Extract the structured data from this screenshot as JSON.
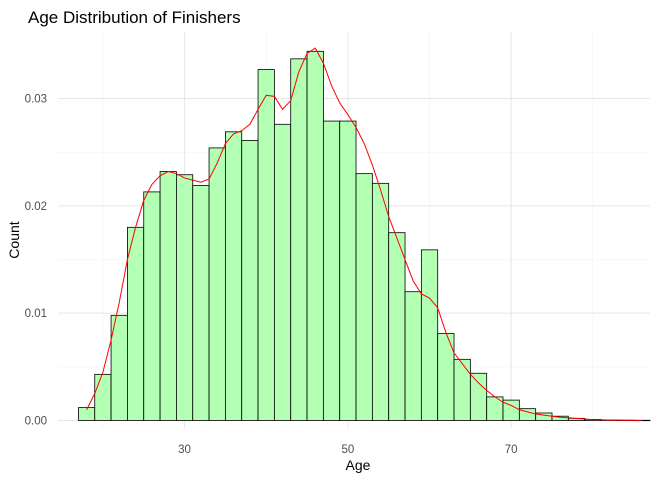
{
  "chart_data": {
    "type": "bar",
    "subtype": "histogram-with-density",
    "title": "Age Distribution of Finishers",
    "xlabel": "Age",
    "ylabel": "Count",
    "xlim": [
      14.5,
      87
    ],
    "ylim": [
      -0.0007,
      0.0362
    ],
    "x_ticks": [
      30,
      50,
      70
    ],
    "x_minor_ticks": [
      20,
      40,
      60,
      80
    ],
    "y_ticks": [
      0.0,
      0.01,
      0.02,
      0.03
    ],
    "y_tick_labels": [
      "0.00",
      "0.01",
      "0.02",
      "0.03"
    ],
    "grid": true,
    "bar_fill": "#b3ffb3",
    "bar_stroke": "#000000",
    "density_color": "#ff0000",
    "bins": [
      {
        "x0": 17,
        "x1": 19,
        "value": 0.0012
      },
      {
        "x0": 19,
        "x1": 21,
        "value": 0.0043
      },
      {
        "x0": 21,
        "x1": 23,
        "value": 0.0098
      },
      {
        "x0": 23,
        "x1": 25,
        "value": 0.018
      },
      {
        "x0": 25,
        "x1": 27,
        "value": 0.0213
      },
      {
        "x0": 27,
        "x1": 29,
        "value": 0.0232
      },
      {
        "x0": 29,
        "x1": 31,
        "value": 0.0229
      },
      {
        "x0": 31,
        "x1": 33,
        "value": 0.0219
      },
      {
        "x0": 33,
        "x1": 35,
        "value": 0.0254
      },
      {
        "x0": 35,
        "x1": 37,
        "value": 0.0269
      },
      {
        "x0": 37,
        "x1": 39,
        "value": 0.0261
      },
      {
        "x0": 39,
        "x1": 41,
        "value": 0.0327
      },
      {
        "x0": 41,
        "x1": 43,
        "value": 0.0276
      },
      {
        "x0": 43,
        "x1": 45,
        "value": 0.0337
      },
      {
        "x0": 45,
        "x1": 47,
        "value": 0.0344
      },
      {
        "x0": 47,
        "x1": 49,
        "value": 0.0279
      },
      {
        "x0": 49,
        "x1": 51,
        "value": 0.0279
      },
      {
        "x0": 51,
        "x1": 53,
        "value": 0.023
      },
      {
        "x0": 53,
        "x1": 55,
        "value": 0.0221
      },
      {
        "x0": 55,
        "x1": 57,
        "value": 0.0175
      },
      {
        "x0": 57,
        "x1": 59,
        "value": 0.012
      },
      {
        "x0": 59,
        "x1": 61,
        "value": 0.0159
      },
      {
        "x0": 61,
        "x1": 63,
        "value": 0.0081
      },
      {
        "x0": 63,
        "x1": 65,
        "value": 0.0057
      },
      {
        "x0": 65,
        "x1": 67,
        "value": 0.0044
      },
      {
        "x0": 67,
        "x1": 69,
        "value": 0.0022
      },
      {
        "x0": 69,
        "x1": 71,
        "value": 0.0019
      },
      {
        "x0": 71,
        "x1": 73,
        "value": 0.0011
      },
      {
        "x0": 73,
        "x1": 75,
        "value": 0.0007
      },
      {
        "x0": 75,
        "x1": 77,
        "value": 0.0004
      },
      {
        "x0": 77,
        "x1": 79,
        "value": 0.0002
      },
      {
        "x0": 79,
        "x1": 81,
        "value": 0.0001
      },
      {
        "x0": 81,
        "x1": 83,
        "value": 5e-05
      },
      {
        "x0": 83,
        "x1": 85,
        "value": 3e-05
      },
      {
        "x0": 85,
        "x1": 87,
        "value": 2e-05
      }
    ],
    "density": {
      "x": [
        18,
        19,
        20,
        21,
        22,
        23,
        24,
        25,
        26,
        27,
        28,
        29,
        30,
        31,
        32,
        33,
        34,
        35,
        36,
        37,
        38,
        39,
        40,
        41,
        42,
        43,
        44,
        45,
        46,
        47,
        48,
        49,
        50,
        51,
        52,
        53,
        54,
        55,
        56,
        57,
        58,
        59,
        60,
        61,
        62,
        63,
        64,
        65,
        66,
        67,
        68,
        69,
        70,
        71,
        72,
        73,
        74,
        75,
        76,
        78,
        80,
        82,
        84,
        86
      ],
      "y": [
        0.001,
        0.0025,
        0.0045,
        0.0075,
        0.011,
        0.015,
        0.018,
        0.0205,
        0.022,
        0.0228,
        0.0232,
        0.023,
        0.0226,
        0.0224,
        0.0222,
        0.0225,
        0.024,
        0.0258,
        0.0267,
        0.027,
        0.0276,
        0.029,
        0.0303,
        0.0302,
        0.029,
        0.0298,
        0.0325,
        0.0342,
        0.0347,
        0.0333,
        0.0312,
        0.0296,
        0.0285,
        0.0273,
        0.0258,
        0.0238,
        0.0215,
        0.019,
        0.017,
        0.015,
        0.013,
        0.0118,
        0.0114,
        0.0105,
        0.0082,
        0.0063,
        0.0053,
        0.0043,
        0.0035,
        0.0028,
        0.0022,
        0.0017,
        0.0014,
        0.001,
        0.0008,
        0.0006,
        0.0005,
        0.0004,
        0.0003,
        0.0002,
        8e-05,
        4e-05,
        2e-05,
        1e-05
      ]
    }
  }
}
